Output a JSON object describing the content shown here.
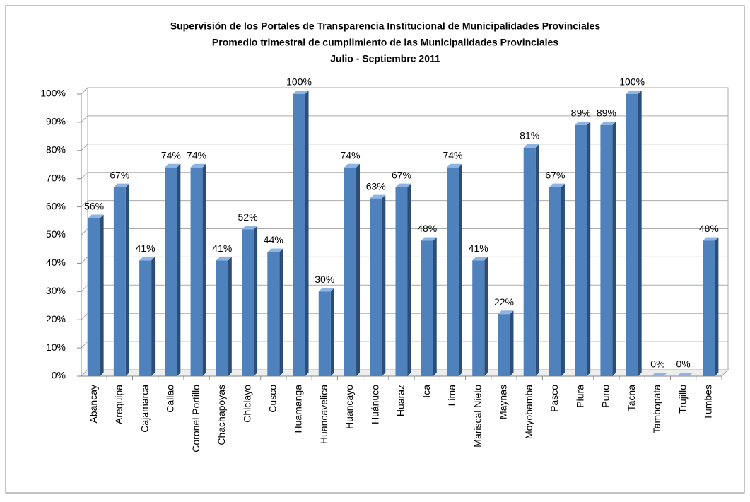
{
  "chart_data": {
    "type": "bar3d",
    "title": [
      "Supervisión de los Portales de Transparencia  Institucional de Municipalidades  Provinciales",
      "Promedio trimestral de cumplimiento de las Municipalidades  Provinciales",
      "Julio - Septiembre 2011"
    ],
    "categories": [
      "Abancay",
      "Arequipa",
      "Cajamarca",
      "Callao",
      "Coronel Portillo",
      "Chachapoyas",
      "Chiclayo",
      "Cusco",
      "Huamanga",
      "Huancavelica",
      "Huancayo",
      "Huánuco",
      "Huaraz",
      "Ica",
      "Lima",
      "Mariscal Nieto",
      "Maynas",
      "Moyobamba",
      "Pasco",
      "Piura",
      "Puno",
      "Tacna",
      "Tambopata",
      "Trujillo",
      "Tumbes"
    ],
    "values": [
      56,
      67,
      41,
      74,
      74,
      41,
      52,
      44,
      100,
      30,
      74,
      63,
      67,
      48,
      74,
      41,
      22,
      81,
      67,
      89,
      89,
      100,
      0,
      0,
      48
    ],
    "value_labels": [
      "56%",
      "67%",
      "41%",
      "74%",
      "74%",
      "41%",
      "52%",
      "44%",
      "100%",
      "30%",
      "74%",
      "63%",
      "67%",
      "48%",
      "74%",
      "41%",
      "22%",
      "81%",
      "67%",
      "89%",
      "89%",
      "100%",
      "0%",
      "0%",
      "48%"
    ],
    "color": "#4f81bd",
    "ylim": [
      0,
      100
    ],
    "yticks": [
      {
        "value": 0,
        "label": "0%"
      },
      {
        "value": 10,
        "label": "10%"
      },
      {
        "value": 20,
        "label": "20%"
      },
      {
        "value": 30,
        "label": "30%"
      },
      {
        "value": 40,
        "label": "40%"
      },
      {
        "value": 50,
        "label": "50%"
      },
      {
        "value": 60,
        "label": "60%"
      },
      {
        "value": 70,
        "label": "70%"
      },
      {
        "value": 80,
        "label": "80%"
      },
      {
        "value": 90,
        "label": "90%"
      },
      {
        "value": 100,
        "label": "100%"
      }
    ],
    "grid": true
  }
}
